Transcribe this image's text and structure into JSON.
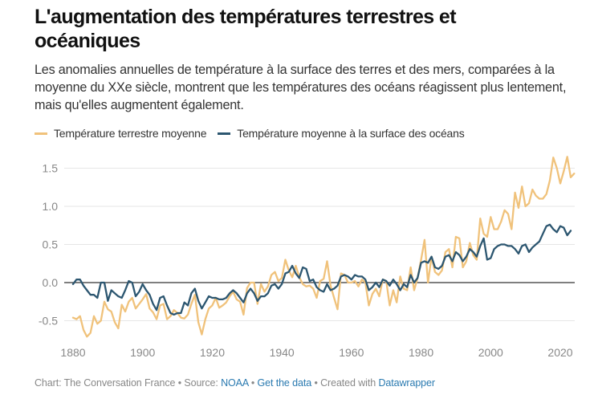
{
  "title": "L'augmentation des températures terrestres et océaniques",
  "subtitle": "Les anomalies annuelles de température à la surface des terres et des mers, comparées à la moyenne du XXe siècle, montrent que les températures des océans réagissent plus lentement, mais qu'elles augmentent également.",
  "legend": [
    {
      "label": "Température terrestre moyenne",
      "color": "#f0c27b"
    },
    {
      "label": "Température moyenne à la surface des océans",
      "color": "#2c5670"
    }
  ],
  "footer": {
    "prefix": "Chart: The Conversation France • Source: ",
    "source_link": "NOAA",
    "sep1": " • ",
    "data_link": "Get the data",
    "sep2": " • Created with ",
    "tool_link": "Datawrapper"
  },
  "chart_data": {
    "type": "line",
    "title": "L'augmentation des températures terrestres et océaniques",
    "xlabel": "",
    "ylabel": "",
    "xlim": [
      1880,
      2022
    ],
    "ylim": [
      -0.75,
      1.7
    ],
    "x_ticks": [
      "1880",
      "1900",
      "1920",
      "1940",
      "1960",
      "1980",
      "2000",
      "2020"
    ],
    "y_ticks": [
      "1.5",
      "1.0",
      "0.5",
      "0.0",
      "-0.5"
    ],
    "y_tick_values": [
      1.5,
      1.0,
      0.5,
      0.0,
      -0.5
    ],
    "grid": true,
    "legend_position": "top-left",
    "x_start": 1880,
    "series": [
      {
        "name": "Température terrestre moyenne",
        "color": "#f0c27b",
        "values": [
          -0.46,
          -0.48,
          -0.44,
          -0.62,
          -0.71,
          -0.66,
          -0.44,
          -0.54,
          -0.5,
          -0.25,
          -0.35,
          -0.38,
          -0.52,
          -0.6,
          -0.29,
          -0.38,
          -0.25,
          -0.2,
          -0.34,
          -0.28,
          -0.22,
          -0.15,
          -0.34,
          -0.39,
          -0.48,
          -0.3,
          -0.28,
          -0.48,
          -0.44,
          -0.36,
          -0.4,
          -0.46,
          -0.47,
          -0.42,
          -0.28,
          -0.16,
          -0.52,
          -0.68,
          -0.48,
          -0.34,
          -0.3,
          -0.2,
          -0.33,
          -0.3,
          -0.26,
          -0.18,
          -0.12,
          -0.22,
          -0.25,
          -0.42,
          -0.07,
          0.0,
          0.0,
          -0.28,
          -0.02,
          -0.12,
          -0.05,
          0.1,
          0.14,
          0.02,
          0.06,
          0.3,
          0.16,
          0.07,
          0.22,
          0.07,
          -0.02,
          -0.05,
          -0.04,
          -0.08,
          -0.2,
          0.02,
          0.05,
          0.28,
          -0.04,
          -0.2,
          -0.35,
          0.12,
          0.1,
          0.0,
          0.0,
          0.02,
          -0.05,
          0.04,
          0.0,
          -0.3,
          -0.15,
          -0.08,
          -0.18,
          0.04,
          0.02,
          -0.3,
          -0.1,
          -0.26,
          0.08,
          -0.08,
          -0.1,
          0.2,
          -0.1,
          0.06,
          0.3,
          0.56,
          0.0,
          0.34,
          0.14,
          0.1,
          0.16,
          0.4,
          0.44,
          0.2,
          0.6,
          0.58,
          0.2,
          0.28,
          0.52,
          0.36,
          0.3,
          0.84,
          0.64,
          0.6,
          0.86,
          0.7,
          0.7,
          0.8,
          0.95,
          0.9,
          0.7,
          1.18,
          0.98,
          1.26,
          1.0,
          1.04,
          1.22,
          1.14,
          1.1,
          1.1,
          1.16,
          1.34,
          1.64,
          1.5,
          1.3,
          1.46,
          1.65,
          1.38,
          1.43
        ]
      },
      {
        "name": "Température moyenne à la surface des océans",
        "color": "#2c5670",
        "values": [
          -0.02,
          0.04,
          0.04,
          -0.04,
          -0.1,
          -0.16,
          -0.16,
          -0.2,
          0.0,
          0.0,
          -0.24,
          -0.1,
          -0.14,
          -0.18,
          -0.2,
          -0.1,
          0.02,
          0.0,
          -0.18,
          -0.12,
          -0.02,
          -0.1,
          -0.16,
          -0.28,
          -0.36,
          -0.2,
          -0.18,
          -0.3,
          -0.4,
          -0.42,
          -0.4,
          -0.4,
          -0.26,
          -0.3,
          -0.14,
          -0.08,
          -0.24,
          -0.34,
          -0.26,
          -0.18,
          -0.2,
          -0.2,
          -0.22,
          -0.22,
          -0.2,
          -0.14,
          -0.1,
          -0.14,
          -0.2,
          -0.26,
          -0.14,
          -0.08,
          -0.14,
          -0.24,
          -0.18,
          -0.18,
          -0.14,
          -0.04,
          -0.02,
          -0.08,
          -0.02,
          0.12,
          0.14,
          0.22,
          0.12,
          0.06,
          0.2,
          0.18,
          0.02,
          0.04,
          -0.06,
          -0.1,
          -0.12,
          -0.02,
          -0.1,
          -0.08,
          -0.04,
          0.08,
          0.1,
          0.08,
          0.04,
          0.1,
          0.08,
          0.08,
          0.04,
          -0.1,
          -0.06,
          0.0,
          -0.06,
          0.04,
          0.02,
          -0.04,
          0.04,
          -0.02,
          -0.1,
          -0.02,
          -0.06,
          0.1,
          0.0,
          0.06,
          0.26,
          0.28,
          0.26,
          0.34,
          0.2,
          0.18,
          0.22,
          0.34,
          0.36,
          0.28,
          0.4,
          0.36,
          0.28,
          0.34,
          0.44,
          0.4,
          0.34,
          0.48,
          0.58,
          0.3,
          0.32,
          0.44,
          0.48,
          0.5,
          0.5,
          0.48,
          0.48,
          0.44,
          0.38,
          0.48,
          0.5,
          0.4,
          0.46,
          0.5,
          0.54,
          0.64,
          0.74,
          0.76,
          0.7,
          0.66,
          0.74,
          0.72,
          0.62,
          0.68
        ]
      }
    ]
  }
}
